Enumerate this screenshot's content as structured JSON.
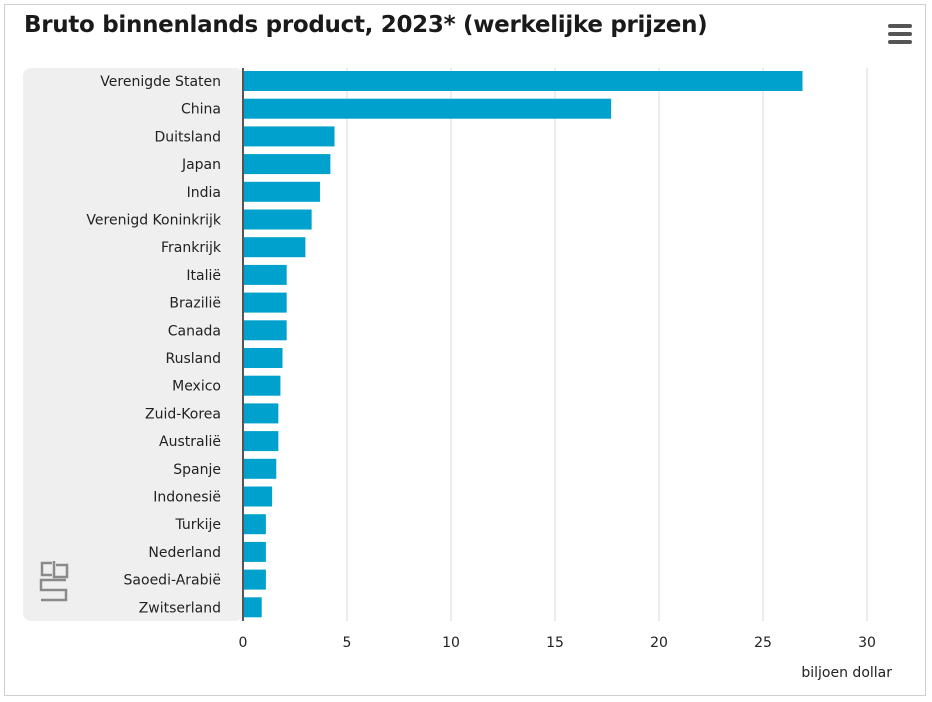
{
  "title": "Bruto binnenlands product, 2023* (werkelijke prijzen)",
  "menu_icon": "hamburger-menu-icon",
  "logo_icon": "cbs-logo-icon",
  "colors": {
    "bar": "#00a1cd",
    "label_panel": "#efefef",
    "grid": "#d9d9d9",
    "axis": "#555555"
  },
  "chart_data": {
    "type": "bar",
    "orientation": "horizontal",
    "title": "Bruto binnenlands product, 2023* (werkelijke prijzen)",
    "xlabel": "biljoen dollar",
    "ylabel": "",
    "xlim": [
      0,
      30
    ],
    "x_ticks": [
      0,
      5,
      10,
      15,
      20,
      25,
      30
    ],
    "grid": true,
    "categories": [
      "Verenigde Staten",
      "China",
      "Duitsland",
      "Japan",
      "India",
      "Verenigd Koninkrijk",
      "Frankrijk",
      "Italië",
      "Brazilië",
      "Canada",
      "Rusland",
      "Mexico",
      "Zuid-Korea",
      "Australië",
      "Spanje",
      "Indonesië",
      "Turkije",
      "Nederland",
      "Saoedi-Arabië",
      "Zwitserland"
    ],
    "values": [
      26.9,
      17.7,
      4.4,
      4.2,
      3.7,
      3.3,
      3.0,
      2.1,
      2.1,
      2.1,
      1.9,
      1.8,
      1.7,
      1.7,
      1.6,
      1.4,
      1.1,
      1.1,
      1.1,
      0.9
    ]
  }
}
